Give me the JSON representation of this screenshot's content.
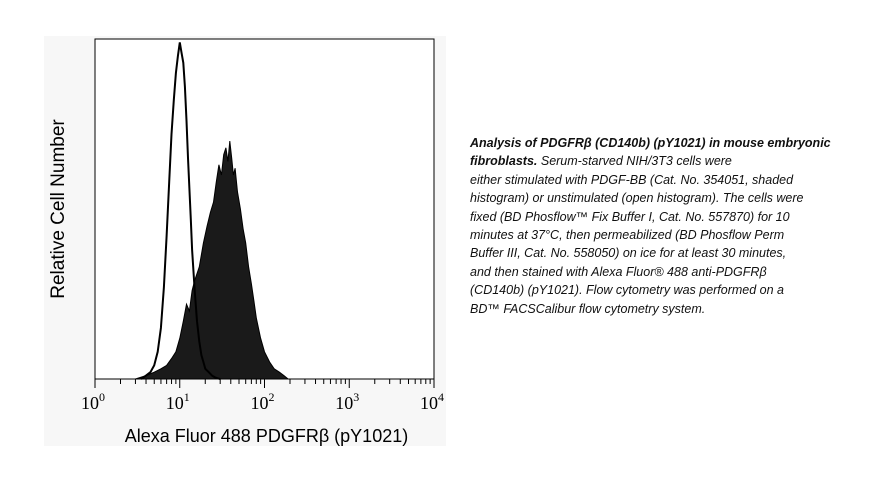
{
  "chart_data": {
    "type": "area",
    "xscale": "log",
    "xlim": [
      1,
      10000
    ],
    "ylim": [
      0,
      1
    ],
    "xlabel": "Alexa Fluor 488 PDGFRβ (pY1021)",
    "ylabel": "Relative Cell Number",
    "x_ticks": [
      {
        "base": "10",
        "exp": "0",
        "value": 1
      },
      {
        "base": "10",
        "exp": "1",
        "value": 10
      },
      {
        "base": "10",
        "exp": "2",
        "value": 100
      },
      {
        "base": "10",
        "exp": "3",
        "value": 1000
      },
      {
        "base": "10",
        "exp": "4",
        "value": 10000
      }
    ],
    "series": [
      {
        "style": "shaded",
        "color": "#1a1a1a",
        "x": [
          3,
          4,
          5,
          6,
          7,
          8,
          9,
          10,
          11,
          12,
          13,
          14,
          15,
          17,
          19,
          21,
          23,
          25,
          27,
          29,
          31,
          33,
          35,
          37,
          39,
          41,
          43,
          45,
          48,
          52,
          56,
          60,
          65,
          70,
          75,
          80,
          90,
          100,
          115,
          130,
          150,
          170,
          190
        ],
        "y": [
          0.0,
          0.01,
          0.02,
          0.03,
          0.04,
          0.06,
          0.08,
          0.12,
          0.17,
          0.22,
          0.2,
          0.26,
          0.29,
          0.33,
          0.4,
          0.45,
          0.49,
          0.52,
          0.58,
          0.63,
          0.6,
          0.66,
          0.68,
          0.64,
          0.7,
          0.65,
          0.6,
          0.62,
          0.55,
          0.5,
          0.44,
          0.4,
          0.33,
          0.28,
          0.23,
          0.18,
          0.12,
          0.08,
          0.05,
          0.03,
          0.02,
          0.01,
          0.0
        ]
      },
      {
        "style": "open",
        "color": "#000000",
        "x": [
          3.5,
          4,
          4.5,
          5,
          5.5,
          6,
          6.5,
          7,
          7.5,
          8,
          8.5,
          9,
          9.5,
          10,
          10.5,
          11,
          11.5,
          12,
          12.5,
          13,
          13.5,
          14,
          15,
          16,
          17,
          18,
          19,
          20,
          22,
          24,
          26,
          28,
          30
        ],
        "y": [
          0.0,
          0.01,
          0.02,
          0.04,
          0.08,
          0.15,
          0.27,
          0.42,
          0.58,
          0.72,
          0.82,
          0.9,
          0.95,
          0.99,
          0.96,
          0.93,
          0.86,
          0.76,
          0.65,
          0.56,
          0.47,
          0.38,
          0.26,
          0.17,
          0.11,
          0.07,
          0.05,
          0.03,
          0.02,
          0.01,
          0.005,
          0.002,
          0.0
        ]
      }
    ]
  },
  "caption": {
    "title": "Analysis of PDGFRβ (CD140b) (pY1021) in mouse embryonic fibroblasts.",
    "lines": [
      "Serum-starved NIH/3T3 cells were",
      "either stimulated with PDGF-BB (Cat. No. 354051, shaded",
      "histogram) or unstimulated (open histogram).  The cells were",
      "fixed (BD Phosflow™ Fix Buffer I, Cat. No. 557870) for 10",
      "minutes at 37°C, then permeabilized (BD Phosflow Perm",
      "Buffer III, Cat. No. 558050) on ice for at least 30 minutes,",
      "and then stained with Alexa Fluor® 488 anti-PDGFRβ",
      "(CD140b) (pY1021).  Flow cytometry was performed on a",
      "BD™ FACSCalibur flow cytometry system."
    ]
  }
}
